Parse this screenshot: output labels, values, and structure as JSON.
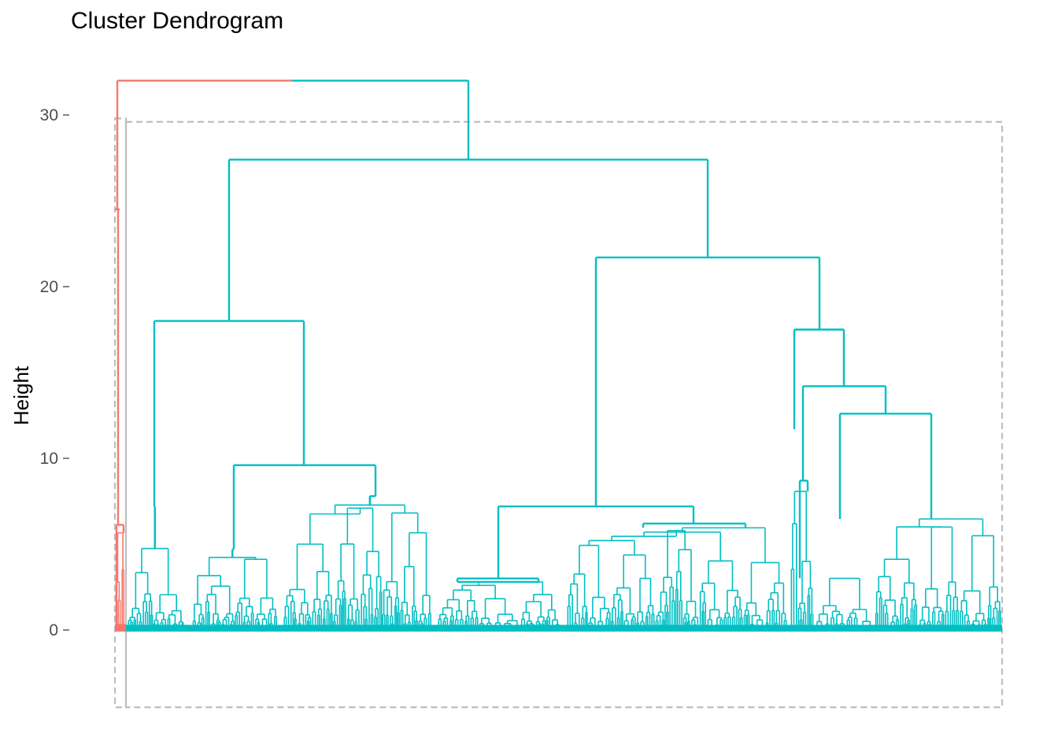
{
  "chart_data": {
    "type": "dendrogram",
    "title": "Cluster Dendrogram",
    "xlabel": "",
    "ylabel": "Height",
    "ylim": [
      -4.5,
      32
    ],
    "y_ticks": [
      0,
      10,
      20,
      30
    ],
    "y_tick_labels": [
      "0",
      "10",
      "20",
      "30"
    ],
    "n_clusters": 2,
    "cluster_colors": {
      "cluster_1": "#F8766D",
      "cluster_2": "#00BFC4"
    },
    "rect_border_color": "#BEBEBE",
    "merges": [
      {
        "id": "root",
        "height": 32.0,
        "cluster": "cluster_1",
        "children": [
          "c1",
          "c2"
        ]
      },
      {
        "id": "c1",
        "height": 24.5,
        "cluster": "cluster_1"
      },
      {
        "id": "c2",
        "height": 27.4,
        "cluster": "cluster_2",
        "children": [
          "A",
          "B"
        ]
      },
      {
        "id": "A",
        "height": 18.0,
        "cluster": "cluster_2",
        "children": [
          "A1",
          "A2"
        ]
      },
      {
        "id": "A1",
        "height": 7.2,
        "cluster": "cluster_2"
      },
      {
        "id": "A2",
        "height": 9.6,
        "cluster": "cluster_2",
        "children": [
          "A2a",
          "A2b"
        ]
      },
      {
        "id": "A2a",
        "height": 4.7,
        "cluster": "cluster_2"
      },
      {
        "id": "A2b",
        "height": 7.8,
        "cluster": "cluster_2"
      },
      {
        "id": "B",
        "height": 21.7,
        "cluster": "cluster_2",
        "children": [
          "B1",
          "B2"
        ]
      },
      {
        "id": "B1",
        "height": 7.2,
        "cluster": "cluster_2",
        "children": [
          "B1a",
          "B1b"
        ]
      },
      {
        "id": "B1a",
        "height": 3.0,
        "cluster": "cluster_2"
      },
      {
        "id": "B1b",
        "height": 6.2,
        "cluster": "cluster_2"
      },
      {
        "id": "B2",
        "height": 17.5,
        "cluster": "cluster_2",
        "children": [
          "B2a",
          "B2b"
        ]
      },
      {
        "id": "B2a",
        "height": 11.7,
        "cluster": "cluster_2"
      },
      {
        "id": "B2b",
        "height": 14.2,
        "cluster": "cluster_2",
        "children": [
          "B2b1",
          "B2b2"
        ]
      },
      {
        "id": "B2b1",
        "height": 8.7,
        "cluster": "cluster_2"
      },
      {
        "id": "B2b2",
        "height": 12.6,
        "cluster": "cluster_2"
      }
    ]
  }
}
